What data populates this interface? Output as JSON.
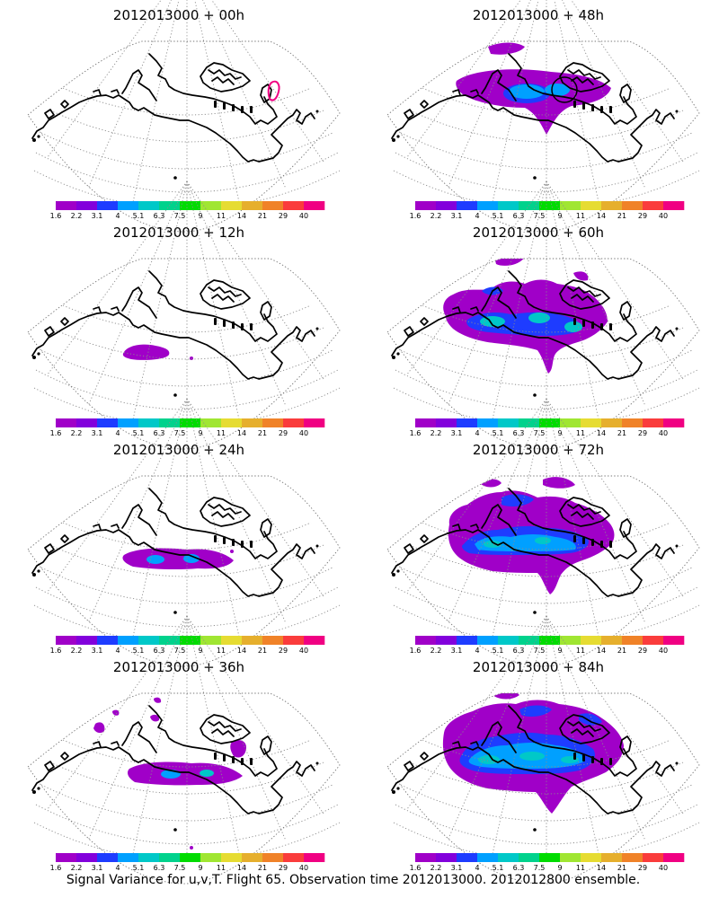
{
  "panels": [
    {
      "title": "2012013000 + 00h",
      "signal": "none"
    },
    {
      "title": "2012013000 + 48h",
      "signal": "band-central"
    },
    {
      "title": "2012013000 + 12h",
      "signal": "small-blob"
    },
    {
      "title": "2012013000 + 60h",
      "signal": "wide-band"
    },
    {
      "title": "2012013000 + 24h",
      "signal": "narrow-band"
    },
    {
      "title": "2012013000 + 72h",
      "signal": "large-region"
    },
    {
      "title": "2012013000 + 36h",
      "signal": "band-patches"
    },
    {
      "title": "2012013000 + 84h",
      "signal": "full-region"
    }
  ],
  "colorbar": {
    "labels": [
      "1.6",
      "2.2",
      "3.1",
      "4",
      "5.1",
      "6.3",
      "7.5",
      "9",
      "11",
      "14",
      "21",
      "29",
      "40"
    ],
    "colors": [
      "#a000c8",
      "#8200dc",
      "#1e3cff",
      "#00a0ff",
      "#00c8c8",
      "#00d28c",
      "#00dc00",
      "#a0e632",
      "#e6dc32",
      "#e6af2d",
      "#f08228",
      "#fa3c3c",
      "#f00082"
    ]
  },
  "caption": "Signal Variance for u,v,T. Flight 65. Observation time 2012013000. 2012012800 ensemble."
}
